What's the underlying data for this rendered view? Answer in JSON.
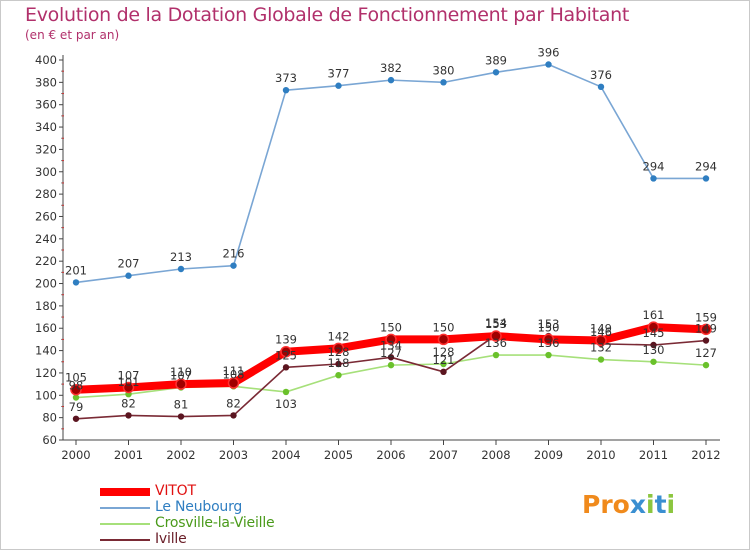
{
  "header": {
    "title": "Evolution de la Dotation Globale de Fonctionnement par Habitant",
    "subtitle": "(en € et par an)"
  },
  "logo": {
    "text": "Proxiti",
    "colors": [
      "#f08a1c",
      "#3a8fd1",
      "#8cc63f"
    ]
  },
  "chart_data": {
    "type": "line",
    "title": "Evolution de la Dotation Globale de Fonctionnement par Habitant",
    "subtitle": "(en € et par an)",
    "xlabel": "",
    "ylabel": "",
    "ylim": [
      60,
      400
    ],
    "ytick_step": 20,
    "grid": false,
    "legend_position": "bottom-left",
    "categories": [
      "2000",
      "2001",
      "2002",
      "2003",
      "2004",
      "2005",
      "2006",
      "2007",
      "2008",
      "2009",
      "2010",
      "2011",
      "2012"
    ],
    "series": [
      {
        "name": "VITOT",
        "color": "#ff0000",
        "marker_color": "#a00000",
        "width": "thick",
        "values": [
          105,
          107,
          110,
          111,
          139,
          142,
          150,
          150,
          153,
          150,
          149,
          161,
          159
        ]
      },
      {
        "name": "Le Neubourg",
        "color": "#7aa6d4",
        "marker_color": "#2f7ec1",
        "width": "thin",
        "values": [
          201,
          207,
          213,
          216,
          373,
          377,
          382,
          380,
          389,
          396,
          376,
          294,
          294
        ]
      },
      {
        "name": "Crosville-la-Vieille",
        "color": "#a6e07a",
        "marker_color": "#6ac12b",
        "width": "thin",
        "values": [
          98,
          101,
          107,
          108,
          103,
          118,
          127,
          128,
          136,
          136,
          132,
          130,
          127
        ]
      },
      {
        "name": "Iville",
        "color": "#7a2a35",
        "marker_color": "#5b1520",
        "width": "thin",
        "values": [
          79,
          82,
          81,
          82,
          125,
          128,
          134,
          121,
          154,
          153,
          146,
          145,
          149
        ]
      }
    ]
  }
}
